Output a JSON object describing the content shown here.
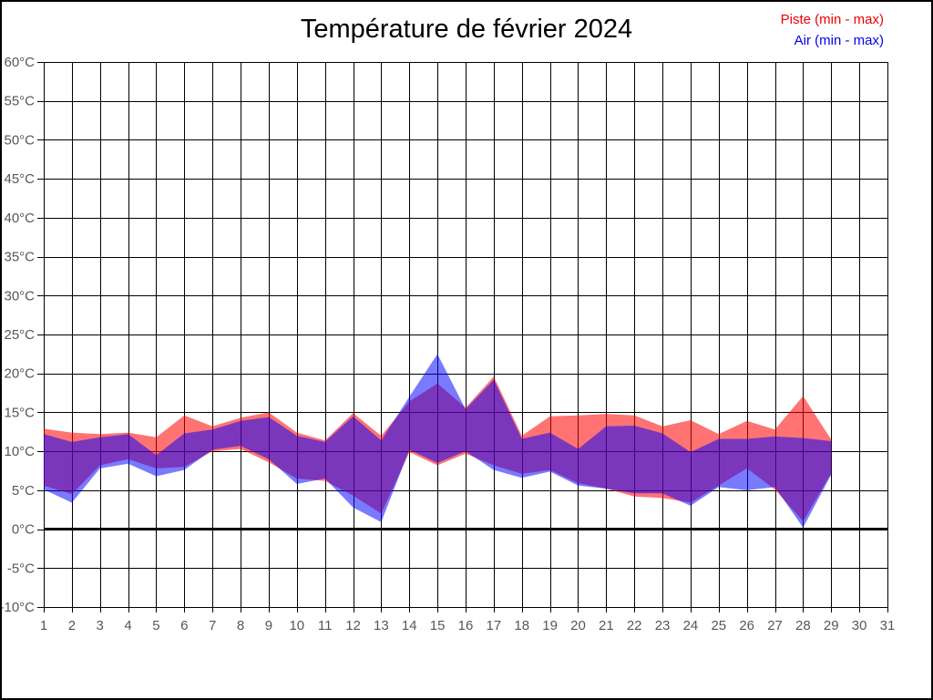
{
  "chart_data": {
    "type": "area",
    "title": "Température de février 2024",
    "legend_position": "top-right",
    "grid": true,
    "x_axis": {
      "tick_labels": [
        "1",
        "2",
        "3",
        "4",
        "5",
        "6",
        "7",
        "8",
        "9",
        "10",
        "11",
        "12",
        "13",
        "14",
        "15",
        "16",
        "17",
        "18",
        "19",
        "20",
        "21",
        "22",
        "23",
        "24",
        "25",
        "26",
        "27",
        "28",
        "29",
        "30",
        "31"
      ]
    },
    "y_axis": {
      "min": -10,
      "max": 60,
      "step": 5,
      "tick_labels": [
        {
          "value": 60,
          "label": "60°C"
        },
        {
          "value": 55,
          "label": "55°C"
        },
        {
          "value": 50,
          "label": "50°C"
        },
        {
          "value": 45,
          "label": "45°C"
        },
        {
          "value": 40,
          "label": "40°C"
        },
        {
          "value": 35,
          "label": "35°C"
        },
        {
          "value": 30,
          "label": "30°C"
        },
        {
          "value": 25,
          "label": "25°C"
        },
        {
          "value": 20,
          "label": "20°C"
        },
        {
          "value": 15,
          "label": "15°C"
        },
        {
          "value": 10,
          "label": "10°C"
        },
        {
          "value": 5,
          "label": "5°C"
        },
        {
          "value": 0,
          "label": "0°C"
        },
        {
          "value": -5,
          "label": "-5°C"
        },
        {
          "value": -10,
          "label": "-10°C"
        }
      ]
    },
    "zero_line_value": 0,
    "series": [
      {
        "name": "Piste (min - max)",
        "legend_color": "#f00000",
        "fill_color": "rgba(255,0,0,0.55)",
        "days": [
          1,
          2,
          3,
          4,
          5,
          6,
          7,
          8,
          9,
          10,
          11,
          12,
          13,
          14,
          15,
          16,
          17,
          18,
          19,
          20,
          21,
          22,
          23,
          24,
          25,
          26,
          27,
          28,
          29
        ],
        "min": [
          5.6,
          4.5,
          8.2,
          9.0,
          7.8,
          8.0,
          10.0,
          10.3,
          8.6,
          6.5,
          6.2,
          4.3,
          2.0,
          9.9,
          8.2,
          9.7,
          8.2,
          7.1,
          7.6,
          5.9,
          5.2,
          4.2,
          4.0,
          3.4,
          5.6,
          7.8,
          5.1,
          1.0,
          7.2
        ],
        "max": [
          12.9,
          12.4,
          12.2,
          12.4,
          11.8,
          14.6,
          13.2,
          14.3,
          15.0,
          12.4,
          11.4,
          14.9,
          12.0,
          16.4,
          18.7,
          15.6,
          19.6,
          12.0,
          14.5,
          14.6,
          14.8,
          14.6,
          13.2,
          14.0,
          12.2,
          13.9,
          12.8,
          17.1,
          11.5
        ]
      },
      {
        "name": "Air (min - max)",
        "legend_color": "#0000f0",
        "fill_color": "rgba(0,0,255,0.52)",
        "days": [
          1,
          2,
          3,
          4,
          5,
          6,
          7,
          8,
          9,
          10,
          11,
          12,
          13,
          14,
          15,
          16,
          17,
          18,
          19,
          20,
          21,
          22,
          23,
          24,
          25,
          26,
          27,
          28,
          29
        ],
        "min": [
          5.1,
          3.4,
          7.8,
          8.4,
          6.8,
          7.6,
          10.2,
          10.7,
          9.0,
          5.8,
          6.5,
          2.8,
          0.9,
          10.2,
          8.5,
          10.0,
          7.6,
          6.6,
          7.4,
          5.6,
          5.2,
          4.6,
          4.6,
          3.0,
          5.4,
          5.0,
          5.4,
          0.2,
          7.0
        ],
        "max": [
          12.2,
          11.2,
          11.8,
          12.2,
          9.5,
          12.3,
          12.8,
          13.9,
          14.4,
          12.0,
          11.2,
          14.5,
          11.4,
          17.0,
          22.5,
          15.4,
          19.2,
          11.6,
          12.4,
          10.3,
          13.2,
          13.3,
          12.3,
          9.9,
          11.6,
          11.6,
          11.9,
          11.7,
          11.3
        ]
      }
    ]
  }
}
